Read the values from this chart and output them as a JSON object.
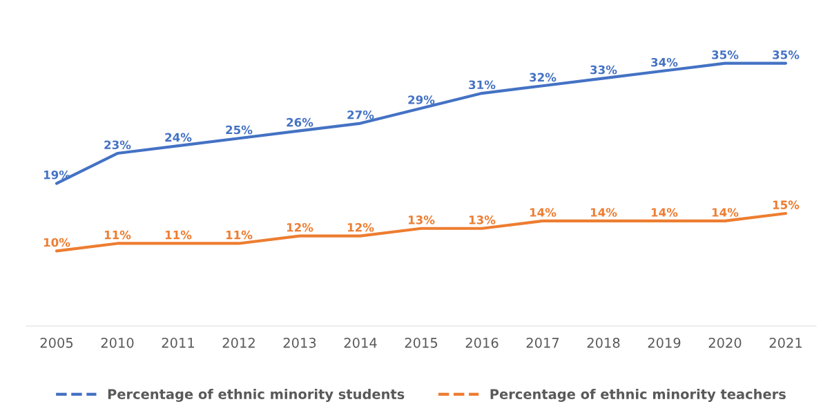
{
  "chart_data": {
    "type": "line",
    "categories": [
      "2005",
      "2010",
      "2011",
      "2012",
      "2013",
      "2014",
      "2015",
      "2016",
      "2017",
      "2018",
      "2019",
      "2020",
      "2021"
    ],
    "series": [
      {
        "name": "Percentage of ethnic minority students",
        "color": "#4472c4",
        "values": [
          19,
          23,
          24,
          25,
          26,
          27,
          29,
          31,
          32,
          33,
          34,
          35,
          35
        ],
        "value_labels": [
          "19%",
          "23%",
          "24%",
          "25%",
          "26%",
          "27%",
          "29%",
          "31%",
          "32%",
          "33%",
          "34%",
          "35%",
          "35%"
        ]
      },
      {
        "name": "Percentage of ethnic minority teachers",
        "color": "#ed7d31",
        "values": [
          10,
          11,
          11,
          11,
          12,
          12,
          13,
          13,
          14,
          14,
          14,
          14,
          15
        ],
        "value_labels": [
          "10%",
          "11%",
          "11%",
          "11%",
          "12%",
          "12%",
          "13%",
          "13%",
          "14%",
          "14%",
          "14%",
          "14%",
          "15%"
        ]
      }
    ],
    "legend": "bottom",
    "marker": "none",
    "line_style": "solid"
  }
}
